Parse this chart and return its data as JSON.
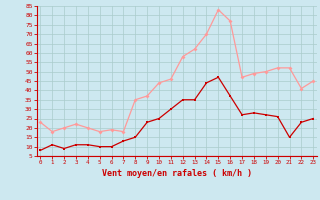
{
  "hours": [
    0,
    1,
    2,
    3,
    4,
    5,
    6,
    7,
    8,
    9,
    10,
    11,
    12,
    13,
    14,
    15,
    16,
    17,
    18,
    19,
    20,
    21,
    22,
    23
  ],
  "wind_mean": [
    8,
    11,
    9,
    11,
    11,
    10,
    10,
    13,
    15,
    23,
    25,
    30,
    35,
    35,
    44,
    47,
    37,
    27,
    28,
    27,
    26,
    15,
    23,
    25
  ],
  "wind_gust": [
    23,
    18,
    20,
    22,
    20,
    18,
    19,
    18,
    35,
    37,
    44,
    46,
    58,
    62,
    70,
    83,
    77,
    47,
    49,
    50,
    52,
    52,
    41,
    45
  ],
  "ylim_min": 5,
  "ylim_max": 85,
  "yticks": [
    5,
    10,
    15,
    20,
    25,
    30,
    35,
    40,
    45,
    50,
    55,
    60,
    65,
    70,
    75,
    80,
    85
  ],
  "xlabel": "Vent moyen/en rafales ( km/h )",
  "bg_color": "#cde8f0",
  "grid_color": "#aacccc",
  "line_color_mean": "#cc0000",
  "line_color_gust": "#ff9999",
  "xlabel_color": "#cc0000",
  "tick_color": "#cc0000",
  "ytick_labels": [
    "5",
    "10",
    "15",
    "20",
    "25",
    "30",
    "35",
    "40",
    "45",
    "50",
    "55",
    "60",
    "65",
    "70",
    "75",
    "80",
    "85"
  ]
}
